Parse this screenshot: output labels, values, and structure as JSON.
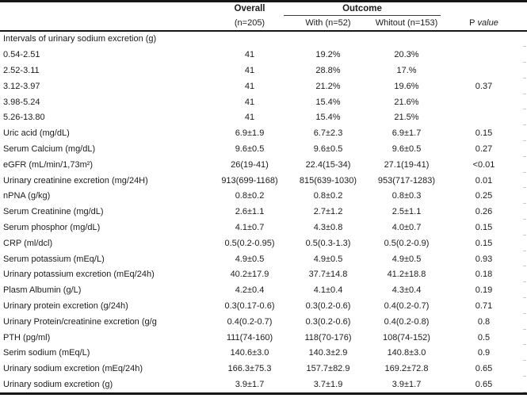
{
  "table": {
    "header": {
      "overall_title": "Overall",
      "overall_sub": "(n=205)",
      "outcome_title": "Outcome",
      "outcome_sub_with": "With (n=52)",
      "outcome_sub_without": "Whitout (n=153)",
      "p_label_prefix": "P",
      "p_label_italic": "value"
    },
    "colors": {
      "rule": "#161616",
      "text": "#1c1c1c",
      "edge_tick": "#c8c8c8"
    },
    "rows": [
      {
        "label": "Intervals of urinary sodium excretion (g)",
        "overall": "",
        "with_group": "",
        "without_group": "",
        "p": ""
      },
      {
        "label": "0.54-2.51",
        "overall": "41",
        "with_group": "19.2%",
        "without_group": "20.3%",
        "p": ""
      },
      {
        "label": "2.52-3.11",
        "overall": "41",
        "with_group": "28.8%",
        "without_group": "17.%",
        "p": ""
      },
      {
        "label": "3.12-3.97",
        "overall": "41",
        "with_group": "21.2%",
        "without_group": "19.6%",
        "p": "0.37"
      },
      {
        "label": "3.98-5.24",
        "overall": "41",
        "with_group": "15.4%",
        "without_group": "21.6%",
        "p": ""
      },
      {
        "label": "5.26-13.80",
        "overall": "41",
        "with_group": "15.4%",
        "without_group": "21.5%",
        "p": ""
      },
      {
        "label": "Uric acid (mg/dL)",
        "overall": "6.9±1.9",
        "with_group": "6.7±2.3",
        "without_group": "6.9±1.7",
        "p": "0.15"
      },
      {
        "label": "Serum Calcium (mg/dL)",
        "overall": "9.6±0.5",
        "with_group": "9.6±0.5",
        "without_group": "9.6±0.5",
        "p": "0.27"
      },
      {
        "label": "eGFR (mL/min/1,73m²)",
        "overall": "26(19-41)",
        "with_group": "22.4(15-34)",
        "without_group": "27.1(19-41)",
        "p": "<0.01"
      },
      {
        "label": "Urinary creatinine excretion (mg/24H)",
        "overall": "913(699-1168)",
        "with_group": "815(639-1030)",
        "without_group": "953(717-1283)",
        "p": "0.01"
      },
      {
        "label": "nPNA (g/kg)",
        "overall": "0.8±0.2",
        "with_group": "0.8±0.2",
        "without_group": "0.8±0.3",
        "p": "0.25"
      },
      {
        "label": "Serum Creatinine (mg/dL)",
        "overall": "2.6±1.1",
        "with_group": "2.7±1.2",
        "without_group": "2.5±1.1",
        "p": "0.26"
      },
      {
        "label": "Serum phosphor (mg/dL)",
        "overall": "4.1±0.7",
        "with_group": "4.3±0.8",
        "without_group": "4.0±0.7",
        "p": "0.15"
      },
      {
        "label": "CRP (ml/dcl)",
        "overall": "0.5(0.2-0.95)",
        "with_group": "0.5(0.3-1.3)",
        "without_group": "0.5(0.2-0.9)",
        "p": "0.15"
      },
      {
        "label": "Serum potassium (mEq/L)",
        "overall": "4.9±0.5",
        "with_group": "4.9±0.5",
        "without_group": "4.9±0.5",
        "p": "0.93"
      },
      {
        "label": "Urinary potassium excretion (mEq/24h)",
        "overall": "40.2±17.9",
        "with_group": "37.7±14.8",
        "without_group": "41.2±18.8",
        "p": "0.18"
      },
      {
        "label": "Plasm Albumin (g/L)",
        "overall": "4.2±0.4",
        "with_group": "4.1±0.4",
        "without_group": "4.3±0.4",
        "p": "0.19"
      },
      {
        "label": "Urinary protein excretion (g/24h)",
        "overall": "0.3(0.17-0.6)",
        "with_group": "0.3(0.2-0.6)",
        "without_group": "0.4(0.2-0.7)",
        "p": "0.71"
      },
      {
        "label": "Urinary Protein/creatinine excretion (g/g",
        "overall": "0.4(0.2-0.7)",
        "with_group": "0.3(0.2-0.6)",
        "without_group": "0.4(0.2-0.8)",
        "p": "0.8"
      },
      {
        "label": "PTH (pg/ml)",
        "overall": "111(74-160)",
        "with_group": "118(70-176)",
        "without_group": "108(74-152)",
        "p": "0.5"
      },
      {
        "label": "Serim sodium (mEq/L)",
        "overall": "140.6±3.0",
        "with_group": "140.3±2.9",
        "without_group": "140.8±3.0",
        "p": "0.9"
      },
      {
        "label": "Urinary sodium excretion (mEq/24h)",
        "overall": "166.3±75.3",
        "with_group": "157.7±82.9",
        "without_group": "169.2±72.8",
        "p": "0.65"
      },
      {
        "label": "Urinary sodium excretion (g)",
        "overall": "3.9±1.7",
        "with_group": "3.7±1.9",
        "without_group": "3.9±1.7",
        "p": "0.65"
      }
    ]
  }
}
